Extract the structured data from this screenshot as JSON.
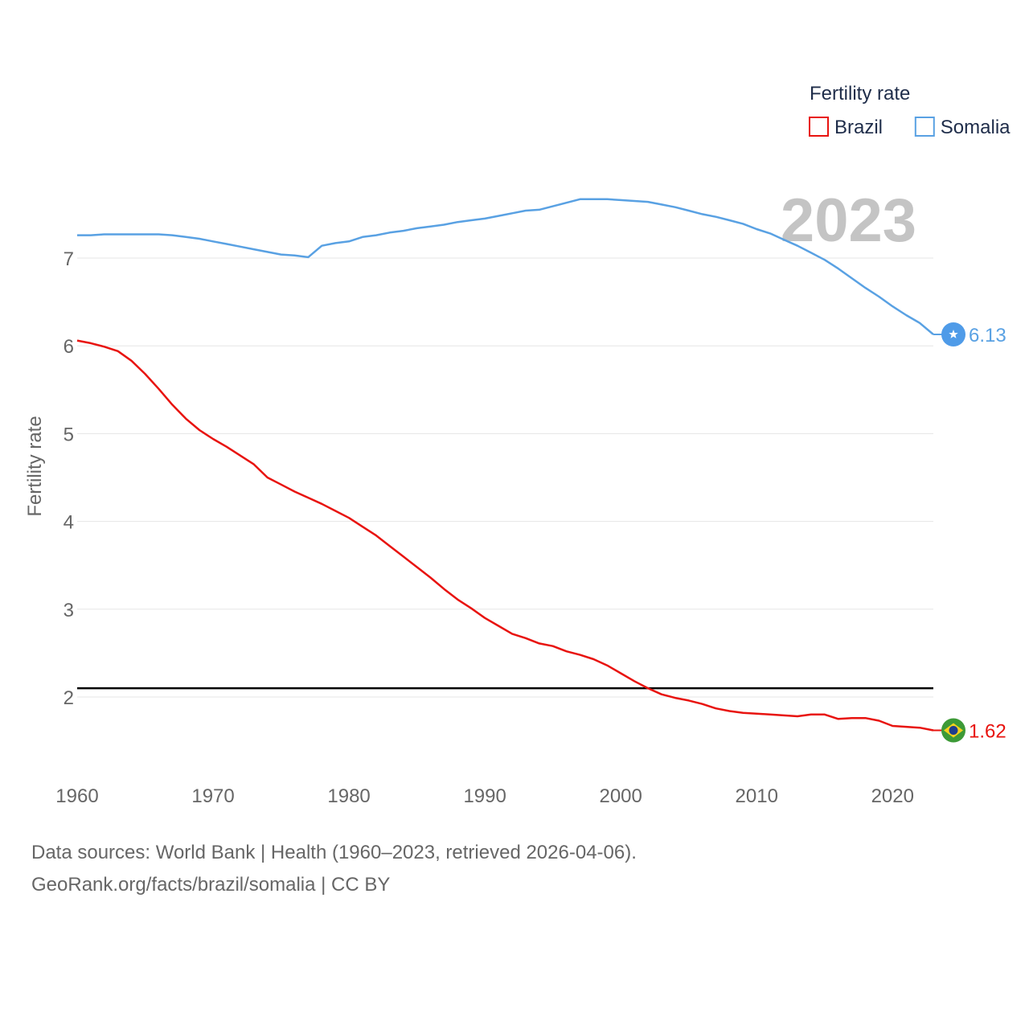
{
  "chart_data": {
    "type": "line",
    "title": "",
    "year_label": "2023",
    "ylabel": "Fertility rate",
    "xlabel": "",
    "xlim": [
      1960,
      2023
    ],
    "ylim": [
      1.1,
      7.8
    ],
    "x_ticks": [
      1960,
      1970,
      1980,
      1990,
      2000,
      2010,
      2020
    ],
    "y_ticks": [
      2,
      3,
      4,
      5,
      6,
      7
    ],
    "reference_line": {
      "value": 2.1,
      "color": "#000000"
    },
    "legend": {
      "title": "Fertility rate",
      "position": "top-right"
    },
    "x": [
      1960,
      1961,
      1962,
      1963,
      1964,
      1965,
      1966,
      1967,
      1968,
      1969,
      1970,
      1971,
      1972,
      1973,
      1974,
      1975,
      1976,
      1977,
      1978,
      1979,
      1980,
      1981,
      1982,
      1983,
      1984,
      1985,
      1986,
      1987,
      1988,
      1989,
      1990,
      1991,
      1992,
      1993,
      1994,
      1995,
      1996,
      1997,
      1998,
      1999,
      2000,
      2001,
      2002,
      2003,
      2004,
      2005,
      2006,
      2007,
      2008,
      2009,
      2010,
      2011,
      2012,
      2013,
      2014,
      2015,
      2016,
      2017,
      2018,
      2019,
      2020,
      2021,
      2022,
      2023
    ],
    "series": [
      {
        "name": "Brazil",
        "color": "#e8130f",
        "end_label": "1.62",
        "icon": "brazil-flag",
        "values": [
          6.06,
          6.03,
          5.99,
          5.94,
          5.83,
          5.68,
          5.51,
          5.33,
          5.17,
          5.04,
          4.94,
          4.85,
          4.75,
          4.65,
          4.5,
          4.42,
          4.34,
          4.27,
          4.2,
          4.12,
          4.04,
          3.94,
          3.84,
          3.72,
          3.6,
          3.48,
          3.36,
          3.23,
          3.11,
          3.01,
          2.9,
          2.81,
          2.72,
          2.67,
          2.61,
          2.58,
          2.52,
          2.48,
          2.43,
          2.36,
          2.27,
          2.18,
          2.1,
          2.03,
          1.99,
          1.96,
          1.92,
          1.87,
          1.84,
          1.82,
          1.81,
          1.8,
          1.79,
          1.78,
          1.8,
          1.8,
          1.75,
          1.76,
          1.76,
          1.73,
          1.67,
          1.66,
          1.65,
          1.62
        ]
      },
      {
        "name": "Somalia",
        "color": "#59a1e3",
        "end_label": "6.13",
        "icon": "somalia-flag",
        "values": [
          7.26,
          7.26,
          7.27,
          7.27,
          7.27,
          7.27,
          7.27,
          7.26,
          7.24,
          7.22,
          7.19,
          7.16,
          7.13,
          7.1,
          7.07,
          7.04,
          7.03,
          7.01,
          7.14,
          7.17,
          7.19,
          7.24,
          7.26,
          7.29,
          7.31,
          7.34,
          7.36,
          7.38,
          7.41,
          7.43,
          7.45,
          7.48,
          7.51,
          7.54,
          7.55,
          7.59,
          7.63,
          7.67,
          7.67,
          7.67,
          7.66,
          7.65,
          7.64,
          7.61,
          7.58,
          7.54,
          7.5,
          7.47,
          7.43,
          7.39,
          7.33,
          7.28,
          7.21,
          7.14,
          7.06,
          6.98,
          6.88,
          6.77,
          6.66,
          6.56,
          6.45,
          6.35,
          6.26,
          6.13
        ]
      }
    ]
  },
  "source": {
    "line1": "Data sources: World Bank | Health (1960–2023, retrieved 2026-04-06).",
    "line2": "GeoRank.org/facts/brazil/somalia | CC BY"
  }
}
